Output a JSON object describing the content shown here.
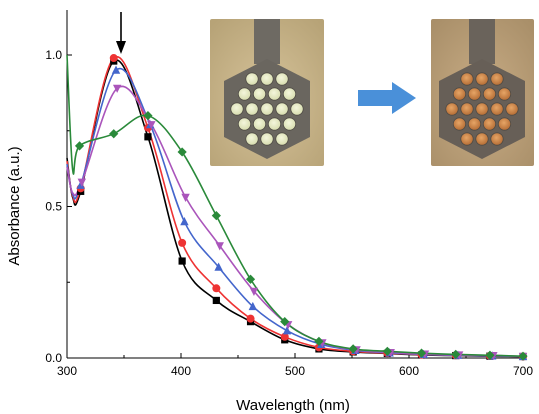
{
  "chart_data": {
    "type": "line",
    "xlabel": "Wavelength (nm)",
    "ylabel": "Absorbance (a.u.)",
    "xlim": [
      300,
      700
    ],
    "ylim": [
      0,
      1.05
    ],
    "x_ticks": [
      "300",
      "400",
      "500",
      "600",
      "700"
    ],
    "y_ticks": [
      "0.0",
      "0.5",
      "1.0"
    ],
    "grid": false,
    "legend": "none",
    "annotation": "downward arrow at peak (~345 nm) indicating decreasing absorbance; arrow between photos indicating color change",
    "series": [
      {
        "color": "#000000",
        "marker": "square",
        "x": [
          312,
          341,
          371,
          401,
          431,
          461,
          491,
          521,
          551,
          581,
          611,
          641,
          671,
          700
        ],
        "y": [
          0.55,
          0.98,
          0.73,
          0.32,
          0.19,
          0.12,
          0.06,
          0.03,
          0.02,
          0.015,
          0.01,
          0.008,
          0.006,
          0.005
        ]
      },
      {
        "color": "#ee3333",
        "marker": "circle",
        "x": [
          312,
          341,
          371,
          401,
          431,
          461,
          491,
          521,
          551,
          581,
          611,
          641,
          671,
          700
        ],
        "y": [
          0.56,
          0.99,
          0.76,
          0.38,
          0.23,
          0.13,
          0.07,
          0.035,
          0.022,
          0.016,
          0.011,
          0.009,
          0.007,
          0.005
        ]
      },
      {
        "color": "#4466cc",
        "marker": "triangle-up",
        "x": [
          312,
          343,
          373,
          403,
          433,
          463,
          493,
          523,
          553,
          583,
          613,
          643,
          673,
          700
        ],
        "y": [
          0.57,
          0.95,
          0.77,
          0.45,
          0.3,
          0.17,
          0.09,
          0.045,
          0.025,
          0.017,
          0.012,
          0.009,
          0.007,
          0.005
        ]
      },
      {
        "color": "#aa55bb",
        "marker": "triangle-down",
        "x": [
          313,
          344,
          374,
          404,
          434,
          464,
          494,
          524,
          554,
          584,
          614,
          644,
          674,
          700
        ],
        "y": [
          0.58,
          0.89,
          0.77,
          0.53,
          0.37,
          0.22,
          0.11,
          0.05,
          0.027,
          0.018,
          0.013,
          0.01,
          0.008,
          0.005
        ]
      },
      {
        "color": "#2a8a3a",
        "marker": "diamond",
        "x": [
          311,
          341,
          371,
          401,
          431,
          461,
          491,
          521,
          551,
          581,
          611,
          641,
          671,
          700
        ],
        "y": [
          0.7,
          0.74,
          0.8,
          0.68,
          0.47,
          0.26,
          0.12,
          0.055,
          0.03,
          0.022,
          0.016,
          0.012,
          0.009,
          0.006
        ]
      }
    ]
  },
  "colors": {
    "axis": "#000000",
    "arrow": "#4a90d9"
  }
}
